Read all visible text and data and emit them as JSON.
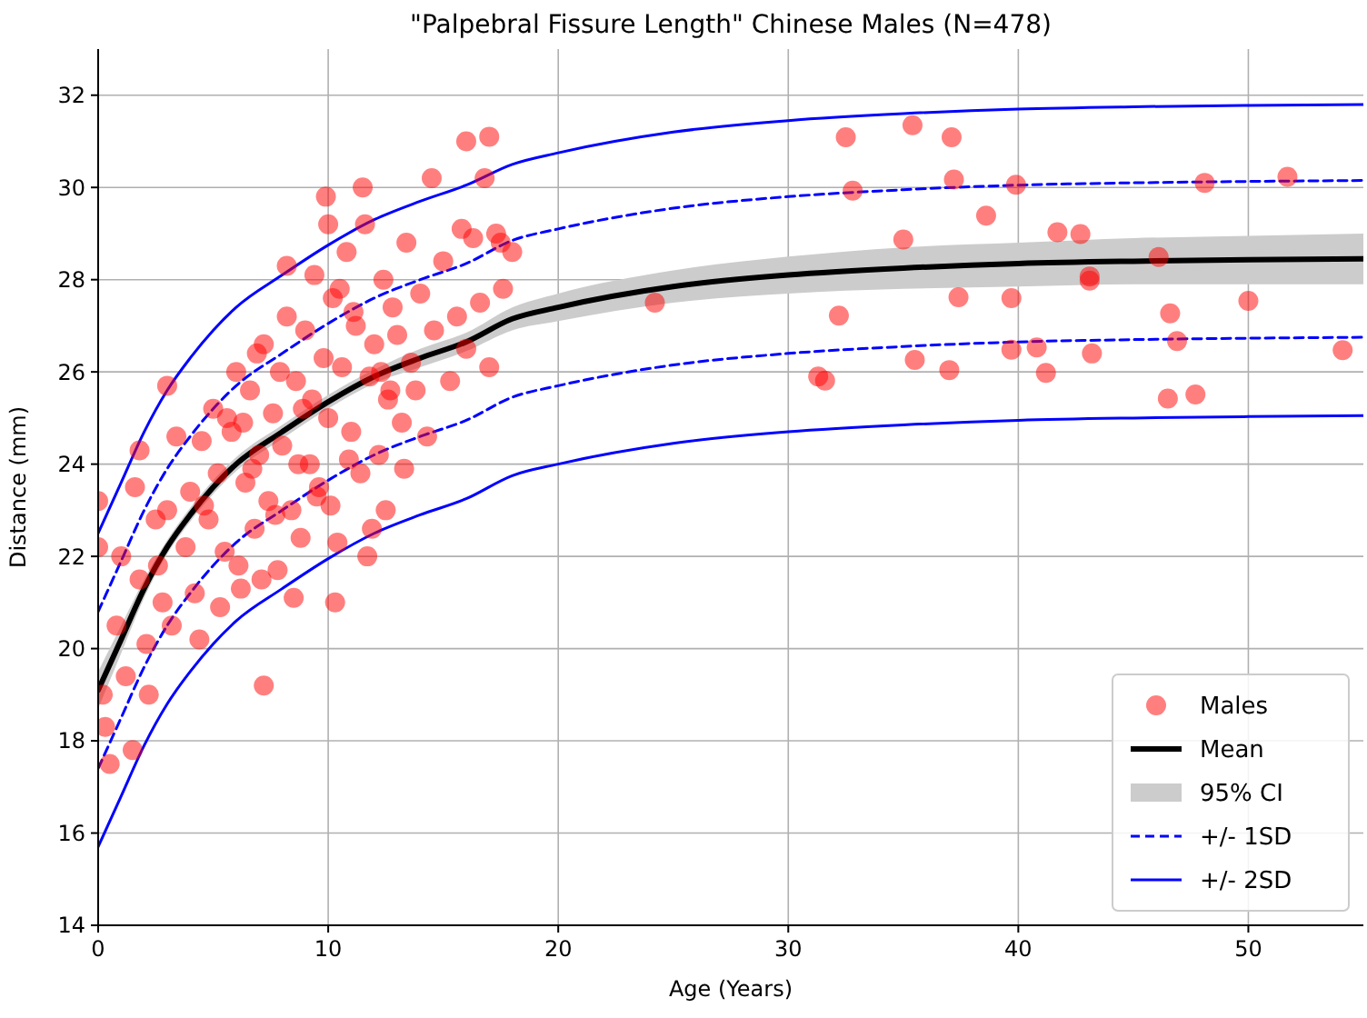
{
  "chart_data": {
    "type": "scatter",
    "title": "\"Palpebral Fissure Length\" Chinese Males (N=478)",
    "xlabel": "Age (Years)",
    "ylabel": "Distance (mm)",
    "xlim": [
      0,
      55
    ],
    "ylim": [
      14,
      33
    ],
    "xticks": [
      0,
      10,
      20,
      30,
      40,
      50
    ],
    "yticks": [
      14,
      16,
      18,
      20,
      22,
      24,
      26,
      28,
      30,
      32
    ],
    "grid": true,
    "legend": "bottom right",
    "annotations": [
      "95% CI"
    ],
    "series": [
      {
        "name": "Males",
        "color": "#ff0000",
        "marker": "circle",
        "x": [
          0,
          0,
          0.3,
          0.5,
          1.5,
          0.2,
          0.8,
          1.2,
          1.8,
          2.1,
          2.5,
          2.8,
          3.0,
          3.2,
          1.0,
          1.6,
          2.2,
          2.6,
          3.4,
          3.8,
          4.0,
          4.2,
          4.5,
          4.8,
          5.0,
          5.2,
          5.5,
          5.8,
          6.0,
          6.2,
          6.4,
          6.6,
          6.8,
          7.0,
          7.2,
          7.4,
          7.6,
          7.8,
          8.0,
          8.2,
          8.4,
          8.6,
          8.8,
          9.0,
          9.2,
          9.4,
          9.6,
          9.8,
          10.0,
          10.2,
          10.4,
          10.6,
          10.8,
          11.0,
          11.2,
          11.4,
          11.6,
          11.8,
          12.0,
          12.2,
          12.4,
          12.6,
          12.8,
          13.0,
          13.2,
          13.4,
          13.6,
          13.8,
          14.0,
          14.3,
          14.6,
          15.0,
          15.3,
          15.6,
          16.0,
          16.3,
          16.6,
          17.0,
          17.3,
          17.6,
          18.0,
          5.3,
          6.1,
          6.9,
          7.7,
          8.5,
          9.3,
          10.1,
          10.9,
          11.7,
          12.5,
          13.3,
          4.4,
          5.6,
          6.3,
          7.1,
          7.9,
          8.7,
          9.5,
          10.3,
          11.1,
          11.9,
          12.7,
          9.9,
          10.0,
          11.5,
          8.2,
          3.0,
          1.8,
          7.2,
          16.0,
          17.0,
          16.8,
          17.5,
          14.5,
          15.8,
          4.6,
          6.7,
          8.9,
          10.5,
          12.3,
          24.2,
          32.5,
          35.4,
          37.1,
          32.8,
          37.2,
          39.9,
          48.1,
          51.7,
          38.6,
          41.7,
          42.7,
          35.0,
          46.1,
          43.1,
          43.1,
          37.4,
          39.7,
          50.0,
          32.2,
          46.6,
          46.9,
          39.7,
          40.8,
          43.2,
          54.1,
          35.5,
          37.0,
          41.2,
          31.3,
          31.6,
          46.5,
          47.7
        ],
        "values": [
          23.2,
          22.2,
          18.3,
          17.5,
          17.8,
          19.0,
          20.5,
          19.4,
          21.5,
          20.1,
          22.8,
          21.0,
          23.0,
          20.5,
          22.0,
          23.5,
          19.0,
          21.8,
          24.6,
          22.2,
          23.4,
          21.2,
          24.5,
          22.8,
          25.2,
          23.8,
          22.1,
          24.7,
          26.0,
          21.3,
          23.6,
          25.6,
          22.6,
          24.2,
          26.6,
          23.2,
          25.1,
          21.7,
          24.4,
          27.2,
          23.0,
          25.8,
          22.4,
          26.9,
          24.0,
          28.1,
          23.5,
          26.3,
          25.0,
          27.6,
          22.3,
          26.1,
          28.6,
          24.7,
          27.0,
          23.8,
          29.2,
          25.9,
          26.6,
          24.2,
          28.0,
          25.4,
          27.4,
          26.8,
          24.9,
          28.8,
          26.2,
          25.6,
          27.7,
          24.6,
          26.9,
          28.4,
          25.8,
          27.2,
          26.5,
          28.9,
          27.5,
          26.1,
          29.0,
          27.8,
          28.6,
          20.9,
          21.8,
          26.4,
          22.9,
          21.1,
          25.4,
          23.1,
          24.1,
          22.0,
          23.0,
          23.9,
          20.2,
          25.0,
          24.9,
          21.5,
          26.0,
          24.0,
          23.3,
          21.0,
          27.3,
          22.6,
          25.6,
          29.8,
          29.2,
          30.0,
          28.3,
          25.7,
          24.3,
          19.2,
          31.0,
          31.1,
          30.2,
          28.8,
          30.2,
          29.1,
          23.1,
          23.9,
          25.2,
          27.8,
          26.0,
          27.5,
          31.09,
          31.35,
          31.09,
          29.93,
          30.17,
          30.06,
          30.1,
          30.23,
          29.39,
          29.03,
          28.99,
          28.87,
          28.49,
          28.07,
          27.98,
          27.62,
          27.6,
          27.54,
          27.22,
          27.27,
          26.67,
          26.48,
          26.53,
          26.4,
          26.47,
          26.26,
          26.04,
          25.98,
          25.9,
          25.81,
          25.42,
          25.51
        ]
      },
      {
        "name": "Mean",
        "type": "line",
        "color": "#000000",
        "line_style": "solid",
        "x": [
          0,
          1,
          2,
          3,
          4,
          5,
          6,
          8,
          10,
          12,
          14,
          16,
          18,
          20,
          25,
          30,
          35,
          40,
          45,
          50,
          55
        ],
        "values": [
          19.1,
          20.2,
          21.3,
          22.2,
          22.9,
          23.5,
          24.0,
          24.7,
          25.35,
          25.9,
          26.3,
          26.65,
          27.15,
          27.4,
          27.85,
          28.1,
          28.25,
          28.35,
          28.4,
          28.43,
          28.45
        ],
        "lower": [
          18.7,
          19.9,
          21.1,
          22.05,
          22.75,
          23.35,
          23.85,
          24.55,
          25.2,
          25.75,
          26.1,
          26.45,
          26.9,
          27.1,
          27.5,
          27.7,
          27.8,
          27.85,
          27.9,
          27.9,
          27.9
        ],
        "upper": [
          19.5,
          20.5,
          21.5,
          22.35,
          23.05,
          23.65,
          24.15,
          24.85,
          25.5,
          26.05,
          26.5,
          26.85,
          27.4,
          27.7,
          28.2,
          28.5,
          28.7,
          28.8,
          28.9,
          28.95,
          29.0
        ]
      },
      {
        "name": "+/- 1SD",
        "type": "line",
        "color": "#0000ff",
        "line_style": "dashed",
        "x": [
          0,
          1,
          2,
          3,
          4,
          5,
          6,
          8,
          10,
          12,
          14,
          16,
          18,
          20,
          25,
          30,
          35,
          40,
          45,
          50,
          55
        ],
        "values": [
          20.8,
          21.9,
          23.0,
          23.9,
          24.6,
          25.2,
          25.7,
          26.4,
          27.05,
          27.6,
          28.0,
          28.35,
          28.85,
          29.1,
          29.55,
          29.8,
          29.95,
          30.05,
          30.1,
          30.13,
          30.15
        ]
      },
      {
        "type": "line",
        "color": "#0000ff",
        "line_style": "dashed",
        "x": [
          0,
          1,
          2,
          3,
          4,
          5,
          6,
          8,
          10,
          12,
          14,
          16,
          18,
          20,
          25,
          30,
          35,
          40,
          45,
          50,
          55
        ],
        "values": [
          17.4,
          18.5,
          19.6,
          20.5,
          21.2,
          21.8,
          22.3,
          23.0,
          23.65,
          24.2,
          24.6,
          24.95,
          25.45,
          25.7,
          26.15,
          26.4,
          26.55,
          26.65,
          26.7,
          26.73,
          26.75
        ]
      },
      {
        "name": "+/- 2SD",
        "type": "line",
        "color": "#0000ff",
        "line_style": "solid",
        "x": [
          0,
          1,
          2,
          3,
          4,
          5,
          6,
          8,
          10,
          12,
          14,
          16,
          18,
          20,
          25,
          30,
          35,
          40,
          45,
          50,
          55
        ],
        "values": [
          22.5,
          23.6,
          24.7,
          25.6,
          26.3,
          26.9,
          27.4,
          28.1,
          28.75,
          29.3,
          29.7,
          30.05,
          30.5,
          30.75,
          31.2,
          31.45,
          31.6,
          31.7,
          31.75,
          31.78,
          31.8
        ]
      },
      {
        "type": "line",
        "color": "#0000ff",
        "line_style": "solid",
        "x": [
          0,
          1,
          2,
          3,
          4,
          5,
          6,
          8,
          10,
          12,
          14,
          16,
          18,
          20,
          25,
          30,
          35,
          40,
          45,
          50,
          55
        ],
        "values": [
          15.7,
          16.8,
          17.9,
          18.8,
          19.5,
          20.1,
          20.6,
          21.3,
          21.95,
          22.5,
          22.9,
          23.25,
          23.75,
          24.0,
          24.45,
          24.7,
          24.85,
          24.95,
          25.0,
          25.03,
          25.05
        ]
      }
    ]
  }
}
